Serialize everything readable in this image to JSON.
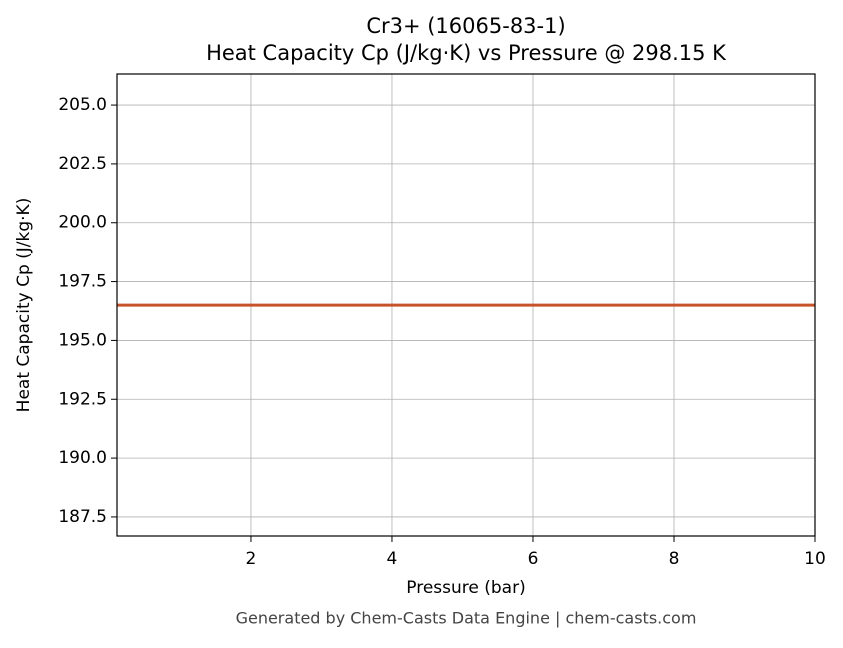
{
  "chart_data": {
    "type": "line",
    "title": "Cr3+ (16065-83-1)",
    "subtitle": "Heat Capacity Cp (J/kg·K) vs Pressure @ 298.15 K",
    "x_label": "Pressure (bar)",
    "y_label": "Heat Capacity Cp (J/kg·K)",
    "footer": "Generated by Chem-Casts Data Engine | chem-casts.com",
    "x": [
      0.1,
      10
    ],
    "series": [
      {
        "name": "Cp",
        "color": "#c8532b",
        "values": [
          196.5,
          196.5
        ]
      }
    ],
    "xlim": [
      0.1,
      10
    ],
    "xticks": [
      2,
      4,
      6,
      8,
      10
    ],
    "ylim": [
      186.69,
      206.32
    ],
    "yticks": [
      {
        "value": 187.5,
        "label": "187.5"
      },
      {
        "value": 190,
        "label": "190.0"
      },
      {
        "value": 192.5,
        "label": "192.5"
      },
      {
        "value": 195,
        "label": "195.0"
      },
      {
        "value": 197.5,
        "label": "197.5"
      },
      {
        "value": 200,
        "label": "200.0"
      },
      {
        "value": 202.5,
        "label": "202.5"
      },
      {
        "value": 205,
        "label": "205.0"
      }
    ],
    "grid": true
  }
}
